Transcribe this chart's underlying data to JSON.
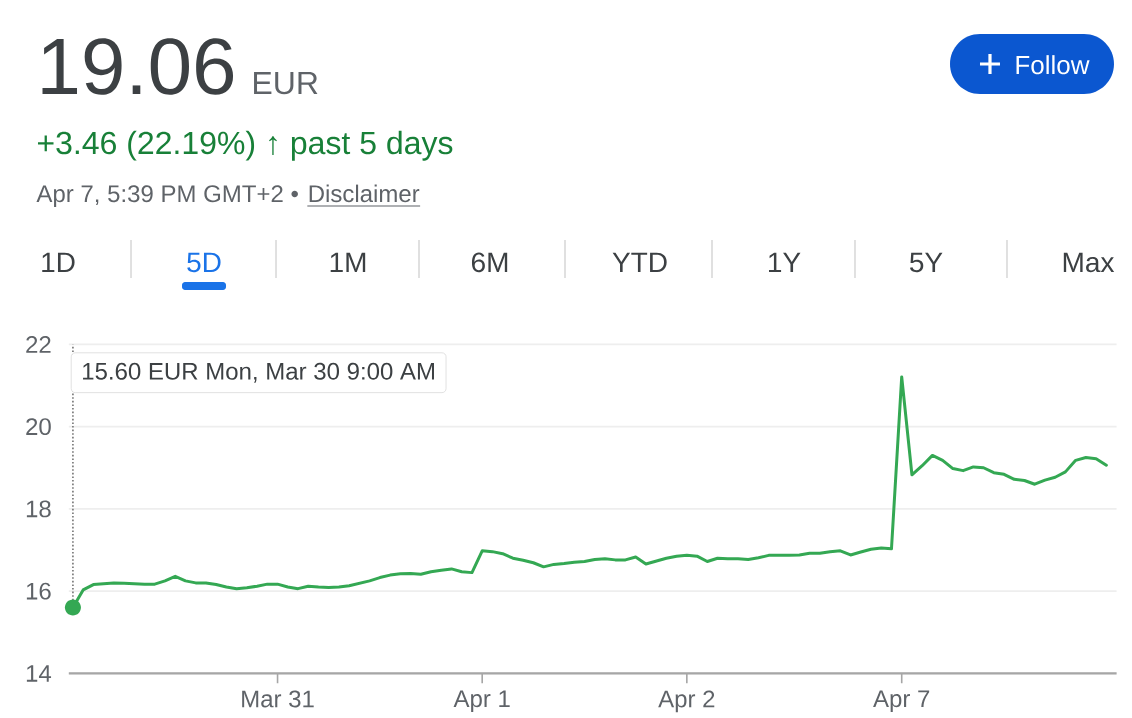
{
  "chart_data": {
    "type": "line",
    "title": "19.06",
    "subtitle": "+3.46 (22.19%) ↑ past 5 days",
    "annotations": [
      "EUR",
      "Apr 7, 5:39 PM GMT+2 •",
      "Disclaimer",
      "Follow",
      "1D",
      "5D",
      "1M",
      "6M",
      "YTD",
      "1Y",
      "5Y",
      "Max",
      "15.60 EUR  Mon, Mar 30 9:00 AM"
    ],
    "categories": [
      null,
      null,
      null,
      null,
      null,
      null,
      null,
      null,
      null,
      null,
      null,
      null,
      null,
      null,
      null,
      null,
      null,
      null,
      null,
      null,
      "Mar 31",
      null,
      null,
      null,
      null,
      null,
      null,
      null,
      null,
      null,
      null,
      null,
      null,
      null,
      null,
      null,
      null,
      null,
      null,
      null,
      "Apr 1",
      null,
      null,
      null,
      null,
      null,
      null,
      null,
      null,
      null,
      null,
      null,
      null,
      null,
      null,
      null,
      null,
      null,
      null,
      null,
      "Apr 2",
      null,
      null,
      null,
      null,
      null,
      null,
      null,
      null,
      null,
      null,
      null,
      null,
      null,
      null,
      null,
      null,
      null,
      null,
      null,
      null,
      "Apr 7",
      null,
      null,
      null,
      null,
      null,
      null,
      null,
      null,
      null,
      null,
      null,
      null,
      null,
      null,
      null,
      null,
      null,
      null,
      null,
      null
    ],
    "series": [
      {
        "color": "#34a853",
        "values": [
          15.6,
          16.03,
          16.16,
          16.18,
          16.2,
          16.19,
          16.18,
          16.17,
          16.17,
          16.25,
          16.36,
          16.25,
          16.2,
          16.2,
          16.16,
          16.1,
          16.06,
          16.08,
          16.12,
          16.17,
          16.17,
          16.1,
          16.06,
          16.12,
          16.1,
          16.09,
          16.1,
          16.13,
          16.19,
          16.25,
          16.33,
          16.39,
          16.42,
          16.43,
          16.41,
          16.47,
          16.51,
          16.54,
          16.47,
          16.45,
          16.98,
          16.96,
          16.91,
          16.8,
          16.75,
          16.69,
          16.59,
          16.65,
          16.67,
          16.7,
          16.72,
          16.77,
          16.79,
          16.76,
          16.76,
          16.83,
          16.66,
          16.73,
          16.8,
          16.85,
          16.87,
          16.85,
          16.72,
          16.8,
          16.79,
          16.79,
          16.77,
          16.81,
          16.87,
          16.87,
          16.87,
          16.88,
          16.92,
          16.92,
          16.96,
          16.98,
          16.88,
          16.95,
          17.02,
          17.05,
          17.03,
          21.21,
          18.83,
          19.05,
          19.3,
          19.18,
          18.98,
          18.93,
          19.02,
          19.0,
          18.88,
          18.84,
          18.72,
          18.69,
          18.6,
          18.7,
          18.77,
          18.9,
          19.18,
          19.25,
          19.22,
          19.06
        ]
      }
    ],
    "ylim": [
      14,
      22
    ],
    "yticks": [
      14,
      16,
      18,
      20,
      22
    ],
    "grid": "y"
  }
}
